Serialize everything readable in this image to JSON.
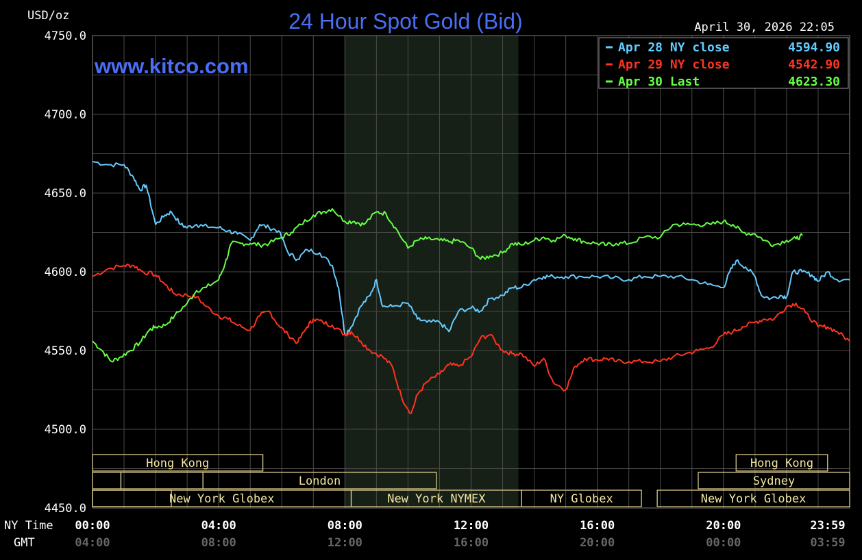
{
  "chart_data": {
    "type": "line",
    "title": "24 Hour Spot Gold (Bid)",
    "timestamp": "April 30, 2026 22:05",
    "watermark": "www.kitco.com",
    "ylabel": "USD/oz",
    "ylim": [
      4450,
      4750
    ],
    "y_ticks": [
      "4750.0",
      "4700.0",
      "4650.0",
      "4600.0",
      "4550.0",
      "4500.0",
      "4450.0"
    ],
    "xlim": [
      0,
      24
    ],
    "x_row_label": "NY Time",
    "gmt_row_label": "GMT",
    "x_ticks": [
      {
        "x": 0,
        "ny": "00:00",
        "gmt": "04:00"
      },
      {
        "x": 4,
        "ny": "04:00",
        "gmt": "08:00"
      },
      {
        "x": 8,
        "ny": "08:00",
        "gmt": "12:00"
      },
      {
        "x": 12,
        "ny": "12:00",
        "gmt": "16:00"
      },
      {
        "x": 16,
        "ny": "16:00",
        "gmt": "20:00"
      },
      {
        "x": 20,
        "ny": "20:00",
        "gmt": "00:00"
      },
      {
        "x": 24,
        "ny": "23:59",
        "gmt": "03:59"
      }
    ],
    "grid": true,
    "legend_position": "top-right",
    "series": [
      {
        "name": "Apr 28 NY close",
        "legend_value": "4594.90",
        "color": "#66ccff",
        "points": [
          [
            0,
            4670
          ],
          [
            0.5,
            4668
          ],
          [
            1,
            4668
          ],
          [
            1.3,
            4660
          ],
          [
            1.5,
            4652
          ],
          [
            1.7,
            4655
          ],
          [
            2,
            4630
          ],
          [
            2.3,
            4636
          ],
          [
            2.5,
            4638
          ],
          [
            2.8,
            4630
          ],
          [
            3,
            4628
          ],
          [
            3.3,
            4630
          ],
          [
            3.5,
            4629
          ],
          [
            4,
            4628
          ],
          [
            4.3,
            4626
          ],
          [
            4.6,
            4624
          ],
          [
            5,
            4620
          ],
          [
            5.3,
            4630
          ],
          [
            5.6,
            4628
          ],
          [
            5.9,
            4626
          ],
          [
            6.2,
            4612
          ],
          [
            6.5,
            4608
          ],
          [
            6.8,
            4614
          ],
          [
            7.2,
            4612
          ],
          [
            7.6,
            4604
          ],
          [
            7.8,
            4590
          ],
          [
            8,
            4560
          ],
          [
            8.2,
            4565
          ],
          [
            8.5,
            4578
          ],
          [
            8.8,
            4585
          ],
          [
            9,
            4595
          ],
          [
            9.2,
            4578
          ],
          [
            9.5,
            4578
          ],
          [
            10,
            4580
          ],
          [
            10.3,
            4570
          ],
          [
            10.6,
            4568
          ],
          [
            11,
            4568
          ],
          [
            11.3,
            4562
          ],
          [
            11.6,
            4575
          ],
          [
            12,
            4577
          ],
          [
            12.3,
            4575
          ],
          [
            12.6,
            4583
          ],
          [
            13,
            4585
          ],
          [
            13.3,
            4590
          ],
          [
            13.6,
            4590
          ],
          [
            14,
            4595
          ],
          [
            14.3,
            4597
          ],
          [
            14.6,
            4597
          ],
          [
            15,
            4597
          ],
          [
            15.5,
            4597
          ],
          [
            16,
            4597
          ],
          [
            16.5,
            4596
          ],
          [
            17,
            4595
          ],
          [
            17.5,
            4597
          ],
          [
            18,
            4597
          ],
          [
            18.5,
            4597
          ],
          [
            19,
            4595
          ],
          [
            19.5,
            4592
          ],
          [
            20,
            4590
          ],
          [
            20.2,
            4600
          ],
          [
            20.4,
            4607
          ],
          [
            20.7,
            4603
          ],
          [
            21,
            4597
          ],
          [
            21.2,
            4585
          ],
          [
            21.5,
            4583
          ],
          [
            21.8,
            4585
          ],
          [
            22,
            4584
          ],
          [
            22.2,
            4600
          ],
          [
            22.5,
            4600
          ],
          [
            22.8,
            4598
          ],
          [
            23,
            4594
          ],
          [
            23.3,
            4600
          ],
          [
            23.6,
            4595
          ],
          [
            24,
            4595
          ]
        ]
      },
      {
        "name": "Apr 29 NY close",
        "legend_value": "4542.90",
        "color": "#ff3322",
        "points": [
          [
            0,
            4597
          ],
          [
            0.5,
            4602
          ],
          [
            1,
            4604
          ],
          [
            1.3,
            4604
          ],
          [
            1.6,
            4600
          ],
          [
            2,
            4598
          ],
          [
            2.3,
            4592
          ],
          [
            2.6,
            4586
          ],
          [
            3,
            4585
          ],
          [
            3.3,
            4584
          ],
          [
            3.6,
            4578
          ],
          [
            4,
            4572
          ],
          [
            4.3,
            4570
          ],
          [
            4.6,
            4566
          ],
          [
            5,
            4563
          ],
          [
            5.3,
            4572
          ],
          [
            5.6,
            4575
          ],
          [
            5.9,
            4566
          ],
          [
            6.2,
            4560
          ],
          [
            6.5,
            4555
          ],
          [
            6.8,
            4565
          ],
          [
            7,
            4570
          ],
          [
            7.3,
            4568
          ],
          [
            7.6,
            4566
          ],
          [
            8,
            4560
          ],
          [
            8.2,
            4562
          ],
          [
            8.5,
            4556
          ],
          [
            8.8,
            4550
          ],
          [
            9.2,
            4546
          ],
          [
            9.5,
            4540
          ],
          [
            9.8,
            4520
          ],
          [
            10.1,
            4510
          ],
          [
            10.3,
            4522
          ],
          [
            10.6,
            4530
          ],
          [
            11,
            4535
          ],
          [
            11.3,
            4541
          ],
          [
            11.6,
            4540
          ],
          [
            12,
            4546
          ],
          [
            12.3,
            4558
          ],
          [
            12.6,
            4560
          ],
          [
            13,
            4550
          ],
          [
            13.3,
            4548
          ],
          [
            13.6,
            4548
          ],
          [
            14,
            4540
          ],
          [
            14.3,
            4545
          ],
          [
            14.6,
            4530
          ],
          [
            15,
            4525
          ],
          [
            15.3,
            4540
          ],
          [
            15.6,
            4545
          ],
          [
            16,
            4544
          ],
          [
            16.3,
            4545
          ],
          [
            16.6,
            4543
          ],
          [
            17,
            4543
          ],
          [
            17.5,
            4543
          ],
          [
            18,
            4543
          ],
          [
            18.4,
            4546
          ],
          [
            18.8,
            4548
          ],
          [
            19.2,
            4550
          ],
          [
            19.6,
            4552
          ],
          [
            20,
            4560
          ],
          [
            20.3,
            4562
          ],
          [
            20.6,
            4565
          ],
          [
            21,
            4568
          ],
          [
            21.3,
            4570
          ],
          [
            21.6,
            4570
          ],
          [
            22,
            4578
          ],
          [
            22.3,
            4580
          ],
          [
            22.6,
            4574
          ],
          [
            23,
            4565
          ],
          [
            23.3,
            4565
          ],
          [
            23.6,
            4562
          ],
          [
            24,
            4556
          ]
        ]
      },
      {
        "name": "Apr 30 Last",
        "legend_value": "4623.30",
        "color": "#66ff44",
        "points": [
          [
            0,
            4556
          ],
          [
            0.3,
            4550
          ],
          [
            0.6,
            4543
          ],
          [
            0.9,
            4546
          ],
          [
            1.2,
            4550
          ],
          [
            1.5,
            4555
          ],
          [
            1.8,
            4563
          ],
          [
            2,
            4565
          ],
          [
            2.3,
            4566
          ],
          [
            2.6,
            4572
          ],
          [
            3,
            4580
          ],
          [
            3.3,
            4588
          ],
          [
            3.6,
            4590
          ],
          [
            4,
            4595
          ],
          [
            4.2,
            4605
          ],
          [
            4.4,
            4618
          ],
          [
            4.7,
            4618
          ],
          [
            5,
            4618
          ],
          [
            5.3,
            4617
          ],
          [
            5.6,
            4618
          ],
          [
            6,
            4622
          ],
          [
            6.3,
            4625
          ],
          [
            6.6,
            4630
          ],
          [
            7,
            4636
          ],
          [
            7.3,
            4638
          ],
          [
            7.6,
            4640
          ],
          [
            8,
            4632
          ],
          [
            8.3,
            4632
          ],
          [
            8.6,
            4630
          ],
          [
            9,
            4638
          ],
          [
            9.3,
            4637
          ],
          [
            9.6,
            4628
          ],
          [
            10,
            4615
          ],
          [
            10.3,
            4620
          ],
          [
            10.6,
            4621
          ],
          [
            11,
            4620
          ],
          [
            11.3,
            4619
          ],
          [
            11.6,
            4620
          ],
          [
            12,
            4615
          ],
          [
            12.3,
            4608
          ],
          [
            12.6,
            4610
          ],
          [
            13,
            4612
          ],
          [
            13.3,
            4618
          ],
          [
            13.6,
            4617
          ],
          [
            14,
            4620
          ],
          [
            14.3,
            4622
          ],
          [
            14.6,
            4620
          ],
          [
            15,
            4623
          ],
          [
            15.3,
            4621
          ],
          [
            15.6,
            4619
          ],
          [
            16,
            4618
          ],
          [
            16.3,
            4617
          ],
          [
            16.6,
            4618
          ],
          [
            17,
            4618
          ],
          [
            17.5,
            4622
          ],
          [
            18,
            4622
          ],
          [
            18.4,
            4630
          ],
          [
            18.8,
            4630
          ],
          [
            19.2,
            4630
          ],
          [
            19.6,
            4630
          ],
          [
            20,
            4632
          ],
          [
            20.3,
            4630
          ],
          [
            20.6,
            4625
          ],
          [
            21,
            4624
          ],
          [
            21.3,
            4620
          ],
          [
            21.6,
            4617
          ],
          [
            22,
            4620
          ],
          [
            22.3,
            4621
          ],
          [
            22.5,
            4623
          ]
        ]
      }
    ],
    "shaded_region": [
      8,
      13.5
    ],
    "sessions": [
      {
        "label": "Hong Kong",
        "row": 0,
        "x0": 0,
        "x1": 5.4
      },
      {
        "label": "Hong Kong",
        "row": 0,
        "x0": 20.4,
        "x1": 23.3
      },
      {
        "label": "",
        "row": 1,
        "x0": 0,
        "x1": 0.9
      },
      {
        "label": "",
        "row": 1,
        "x0": 0.9,
        "x1": 3.5
      },
      {
        "label": "London",
        "row": 1,
        "x0": 3.5,
        "x1": 10.9
      },
      {
        "label": "Sydney",
        "row": 1,
        "x0": 19.2,
        "x1": 24
      },
      {
        "label": "",
        "row": 2,
        "x0": 0,
        "x1": 2.5
      },
      {
        "label": "New York Globex",
        "row": 2,
        "x0": 0,
        "x1": 8.2
      },
      {
        "label": "New York NYMEX",
        "row": 2,
        "x0": 8.2,
        "x1": 13.6
      },
      {
        "label": "NY Globex",
        "row": 2,
        "x0": 13.6,
        "x1": 17.4
      },
      {
        "label": "New York Globex",
        "row": 2,
        "x0": 17.9,
        "x1": 24
      }
    ],
    "colors": {
      "background": "#000000",
      "plot_background": "#000000",
      "shade": "#172017",
      "grid": "#4a4a4a",
      "axis_text": "#ffffff",
      "gmt_text": "#666666",
      "title": "#4a6ef5",
      "session_border": "#d9c98a",
      "session_text": "#f3e6a0"
    }
  }
}
